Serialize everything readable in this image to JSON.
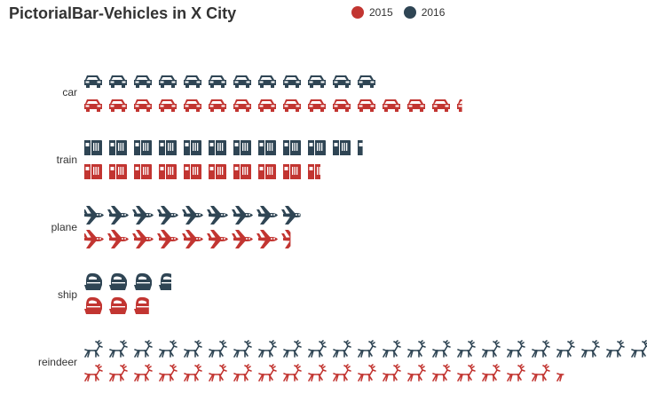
{
  "chart_data": {
    "type": "bar",
    "orientation": "horizontal",
    "title": "PictorialBar-Vehicles in X City",
    "categories": [
      "car",
      "train",
      "plane",
      "ship",
      "reindeer"
    ],
    "category_symbols": [
      "car-icon",
      "train-icon",
      "plane-icon",
      "ship-icon",
      "reindeer-icon"
    ],
    "legend_position": "top",
    "grid": false,
    "series": [
      {
        "name": "2015",
        "color": "#c23531",
        "values": [
          15.2,
          9.5,
          8.3,
          2.6,
          19.3
        ]
      },
      {
        "name": "2016",
        "color": "#2f4554",
        "values": [
          12,
          11.2,
          8.7,
          3.5,
          23
        ]
      }
    ]
  }
}
